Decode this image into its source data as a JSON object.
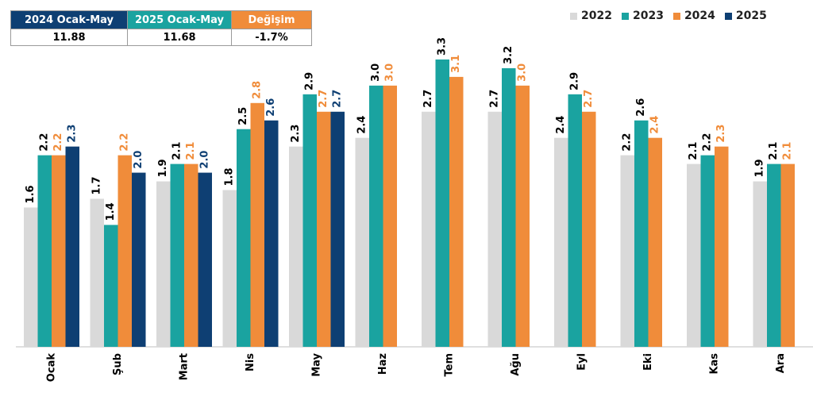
{
  "summary": {
    "headers": [
      "2024 Ocak-May",
      "2025 Ocak-May",
      "Değişim"
    ],
    "values": [
      "11.88",
      "11.68",
      "-1.7%"
    ],
    "header_colors": [
      "#0e3f73",
      "#1aa3a0",
      "#f08c3a"
    ]
  },
  "chart_data": {
    "type": "bar",
    "categories": [
      "Ocak",
      "Şub",
      "Mart",
      "Nis",
      "May",
      "Haz",
      "Tem",
      "Ağu",
      "Eyl",
      "Eki",
      "Kas",
      "Ara"
    ],
    "series": [
      {
        "name": "2022",
        "color": "#d9d9d9",
        "label_color": "#000000",
        "values": [
          1.6,
          1.7,
          1.9,
          1.8,
          2.3,
          2.4,
          2.7,
          2.7,
          2.4,
          2.2,
          2.1,
          1.9
        ]
      },
      {
        "name": "2023",
        "color": "#1aa3a0",
        "label_color": "#000000",
        "values": [
          2.2,
          1.4,
          2.1,
          2.5,
          2.9,
          3.0,
          3.3,
          3.2,
          2.9,
          2.6,
          2.2,
          2.1
        ]
      },
      {
        "name": "2024",
        "color": "#f08c3a",
        "label_color": "#f08c3a",
        "values": [
          2.2,
          2.2,
          2.1,
          2.8,
          2.7,
          3.0,
          3.1,
          3.0,
          2.7,
          2.4,
          2.3,
          2.1
        ]
      },
      {
        "name": "2025",
        "color": "#0e3f73",
        "label_color": "#0e3f73",
        "values": [
          2.3,
          2.0,
          2.0,
          2.6,
          2.7,
          null,
          null,
          null,
          null,
          null,
          null,
          null
        ]
      }
    ],
    "ylim": [
      0,
      3.5
    ],
    "grid": false,
    "legend_position": "top-right"
  }
}
